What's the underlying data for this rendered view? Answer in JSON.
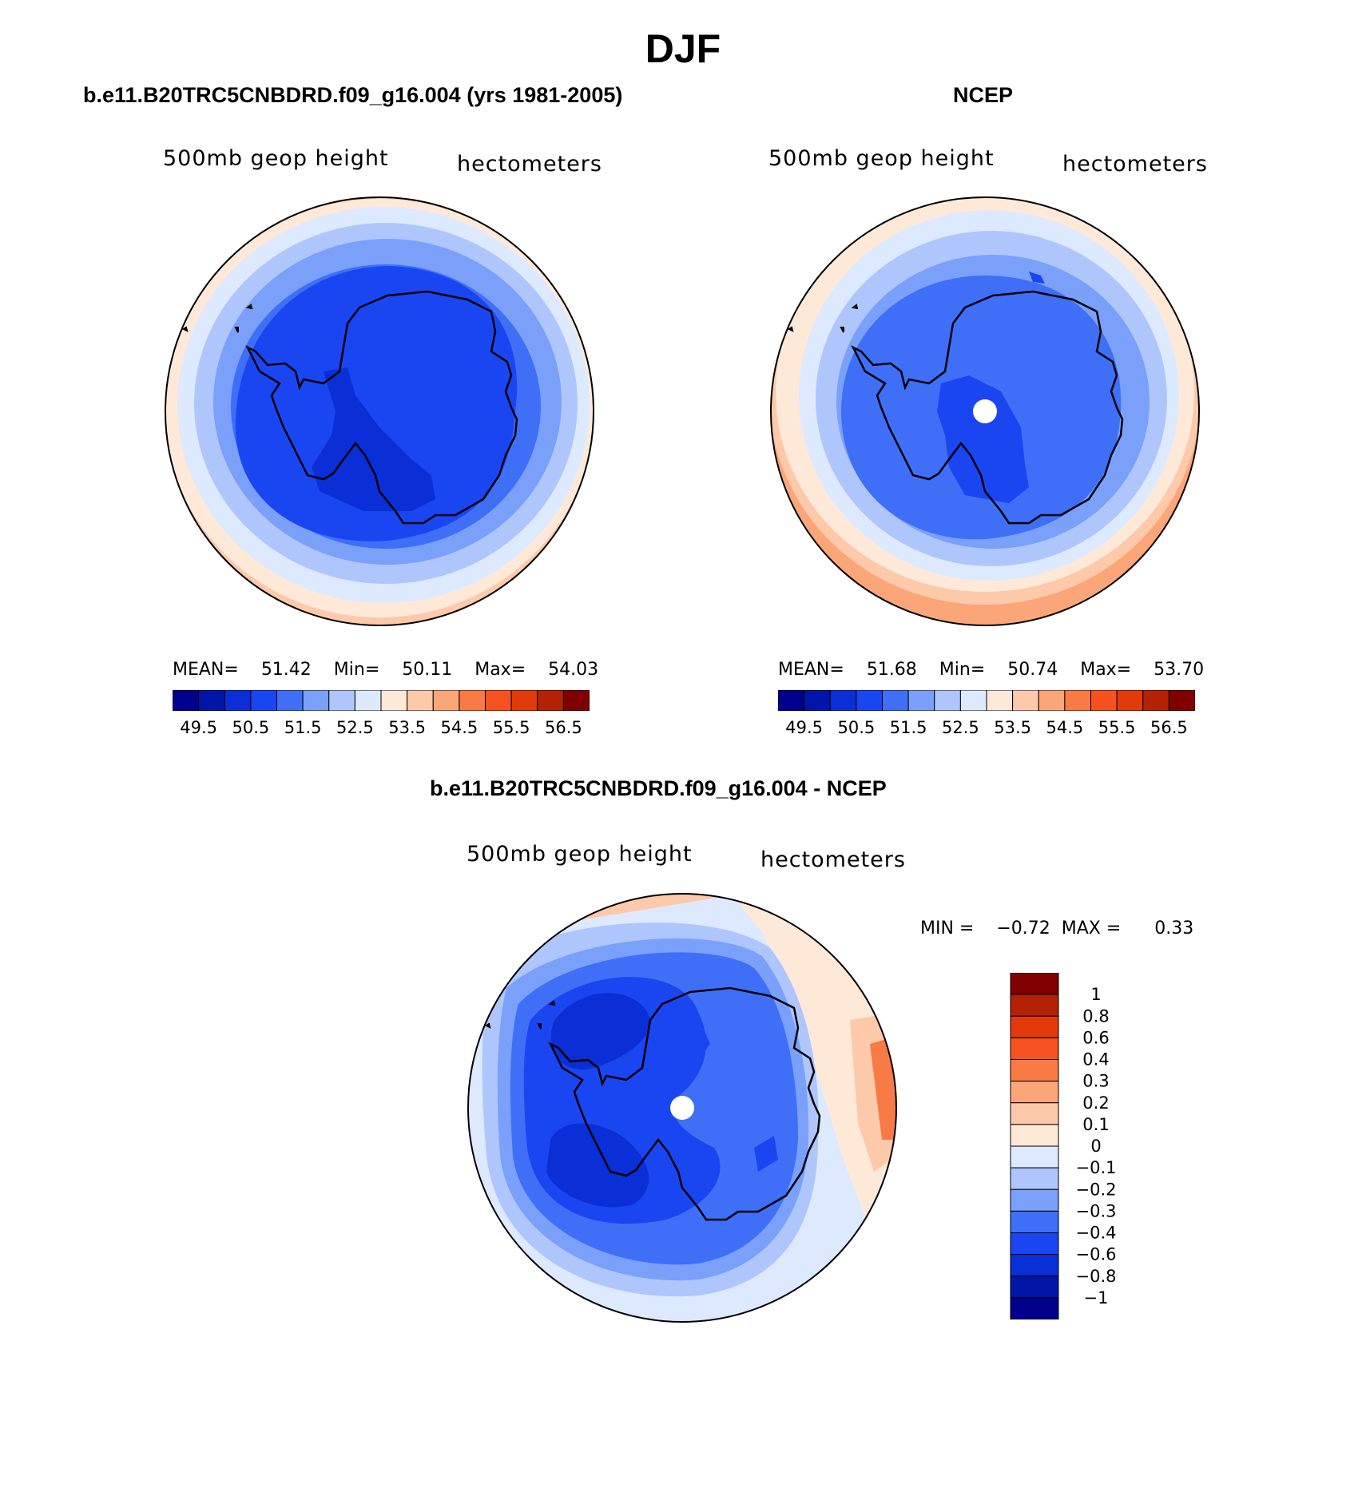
{
  "page": {
    "title": "DJF"
  },
  "colors": {
    "full_field": [
      "#00008c",
      "#0016a8",
      "#0a2fd6",
      "#1a46f2",
      "#3f6ff7",
      "#7aa0fa",
      "#afc6fd",
      "#dde9fe",
      "#fee9d9",
      "#fdc9ab",
      "#fba679",
      "#f87a45",
      "#f55220",
      "#e23a0a",
      "#b52105",
      "#800000"
    ],
    "difference": [
      "#00008c",
      "#0016a8",
      "#0a2fd6",
      "#1a46f2",
      "#3f6ff7",
      "#7aa0fa",
      "#afc6fd",
      "#dde9fe",
      "#fee9d9",
      "#fdc9ab",
      "#fba679",
      "#f87a45",
      "#f55220",
      "#e23a0a",
      "#b52105",
      "#800000"
    ]
  },
  "panels": [
    {
      "title": "b.e11.B20TRC5CNBDRD.f09_g16.004 (yrs 1981-2005)",
      "left_label": "500mb geop height",
      "right_label": "hectometers",
      "stats": {
        "mean_label": "MEAN=",
        "mean": "51.42",
        "min_label": "Min=",
        "min": "50.11",
        "max_label": "Max=",
        "max": "54.03"
      },
      "colorbar_labels": [
        "49.5",
        "50.5",
        "51.5",
        "52.5",
        "53.5",
        "54.5",
        "55.5",
        "56.5"
      ]
    },
    {
      "title": "NCEP",
      "left_label": "500mb geop height",
      "right_label": "hectometers",
      "stats": {
        "mean_label": "MEAN=",
        "mean": "51.68",
        "min_label": "Min=",
        "min": "50.74",
        "max_label": "Max=",
        "max": "53.70"
      },
      "colorbar_labels": [
        "49.5",
        "50.5",
        "51.5",
        "52.5",
        "53.5",
        "54.5",
        "55.5",
        "56.5"
      ]
    },
    {
      "title": "b.e11.B20TRC5CNBDRD.f09_g16.004 - NCEP",
      "left_label": "500mb geop height",
      "right_label": "hectometers",
      "stats": {
        "min_label": "MIN =",
        "min": "−0.72",
        "max_label": "MAX =",
        "max": "0.33"
      },
      "colorbar_labels": [
        "1",
        "0.8",
        "0.6",
        "0.4",
        "0.3",
        "0.2",
        "0.1",
        "0",
        "−0.1",
        "−0.2",
        "−0.3",
        "−0.4",
        "−0.6",
        "−0.8",
        "−1"
      ]
    }
  ]
}
